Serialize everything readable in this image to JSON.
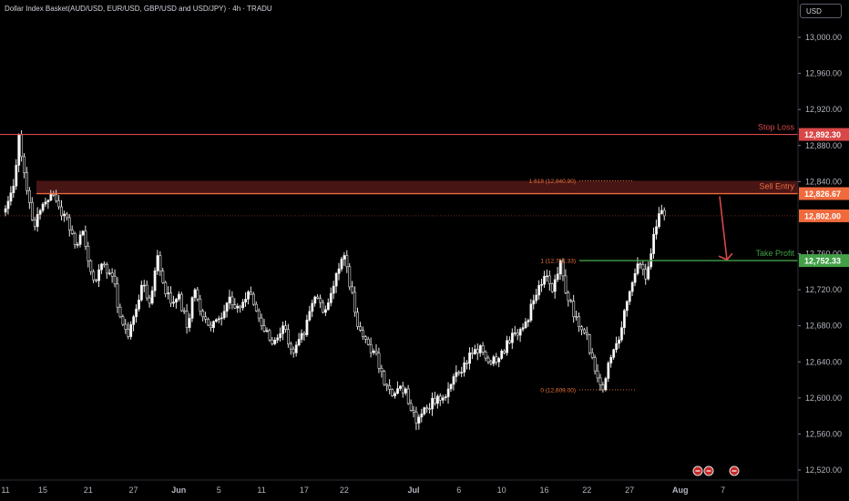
{
  "header": {
    "title": "Dollar Index Basket(AUD/USD, EUR/USD, GBP/USD and USD/JPY) · 4h · TRADU",
    "currency": "USD"
  },
  "colors": {
    "background": "#000000",
    "up": "#f0f0f0",
    "down": "#f0f0f0",
    "upBody": "#ffffff",
    "downBody": "#000000",
    "stop": "#d84848",
    "entry": "#f06a3c",
    "zone": "#5a1a1a",
    "profit": "#43a047",
    "fib": "#f0743c",
    "arrow": "#d84848",
    "last": "#f06a3c"
  },
  "chart_data": {
    "type": "candlestick",
    "ylim": [
      12500,
      13025
    ],
    "y_ticks": [
      "13,000.00",
      "12,960.00",
      "12,920.00",
      "12,880.00",
      "12,840.00",
      "12,760.00",
      "12,720.00",
      "12,680.00",
      "12,640.00",
      "12,600.00",
      "12,560.00",
      "12,520.00"
    ],
    "y_tick_values": [
      13000,
      12960,
      12920,
      12880,
      12840,
      12760,
      12720,
      12680,
      12640,
      12600,
      12560,
      12520
    ],
    "x_ticks": [
      {
        "label": "11",
        "bold": false
      },
      {
        "label": "15",
        "bold": false
      },
      {
        "label": "21",
        "bold": false
      },
      {
        "label": "27",
        "bold": false
      },
      {
        "label": "Jun",
        "bold": true
      },
      {
        "label": "5",
        "bold": false
      },
      {
        "label": "11",
        "bold": false
      },
      {
        "label": "17",
        "bold": false
      },
      {
        "label": "22",
        "bold": false
      },
      {
        "label": "Jul",
        "bold": true
      },
      {
        "label": "6",
        "bold": false
      },
      {
        "label": "10",
        "bold": false
      },
      {
        "label": "16",
        "bold": false
      },
      {
        "label": "22",
        "bold": false
      },
      {
        "label": "27",
        "bold": false
      },
      {
        "label": "Aug",
        "bold": true
      },
      {
        "label": "7",
        "bold": false
      }
    ],
    "x_tick_index": [
      0,
      14,
      31,
      48,
      65,
      80,
      96,
      112,
      127,
      153,
      170,
      186,
      202,
      218,
      234,
      253,
      269
    ],
    "anchors": [
      [
        0,
        12810
      ],
      [
        3,
        12835
      ],
      [
        5,
        12892
      ],
      [
        8,
        12830
      ],
      [
        11,
        12790
      ],
      [
        14,
        12815
      ],
      [
        17,
        12826
      ],
      [
        20,
        12812
      ],
      [
        23,
        12800
      ],
      [
        26,
        12770
      ],
      [
        29,
        12785
      ],
      [
        31,
        12752
      ],
      [
        34,
        12730
      ],
      [
        37,
        12748
      ],
      [
        40,
        12735
      ],
      [
        43,
        12690
      ],
      [
        46,
        12668
      ],
      [
        48,
        12690
      ],
      [
        51,
        12725
      ],
      [
        54,
        12705
      ],
      [
        57,
        12758
      ],
      [
        59,
        12728
      ],
      [
        62,
        12705
      ],
      [
        65,
        12715
      ],
      [
        68,
        12678
      ],
      [
        71,
        12720
      ],
      [
        74,
        12690
      ],
      [
        77,
        12678
      ],
      [
        80,
        12688
      ],
      [
        84,
        12712
      ],
      [
        88,
        12700
      ],
      [
        92,
        12715
      ],
      [
        96,
        12680
      ],
      [
        100,
        12660
      ],
      [
        104,
        12680
      ],
      [
        108,
        12650
      ],
      [
        112,
        12670
      ],
      [
        116,
        12712
      ],
      [
        120,
        12698
      ],
      [
        124,
        12738
      ],
      [
        127,
        12758
      ],
      [
        131,
        12695
      ],
      [
        134,
        12668
      ],
      [
        138,
        12652
      ],
      [
        142,
        12615
      ],
      [
        146,
        12605
      ],
      [
        150,
        12610
      ],
      [
        154,
        12572
      ],
      [
        158,
        12588
      ],
      [
        162,
        12602
      ],
      [
        166,
        12610
      ],
      [
        170,
        12628
      ],
      [
        174,
        12650
      ],
      [
        178,
        12658
      ],
      [
        182,
        12638
      ],
      [
        186,
        12652
      ],
      [
        190,
        12672
      ],
      [
        194,
        12678
      ],
      [
        198,
        12708
      ],
      [
        202,
        12735
      ],
      [
        205,
        12718
      ],
      [
        208,
        12752
      ],
      [
        211,
        12708
      ],
      [
        214,
        12690
      ],
      [
        218,
        12670
      ],
      [
        221,
        12630
      ],
      [
        224,
        12609
      ],
      [
        227,
        12645
      ],
      [
        231,
        12678
      ],
      [
        234,
        12718
      ],
      [
        236,
        12738
      ],
      [
        238,
        12748
      ],
      [
        240,
        12732
      ],
      [
        242,
        12760
      ],
      [
        244,
        12790
      ],
      [
        246,
        12808
      ],
      [
        247,
        12802
      ]
    ],
    "levels": {
      "stop_loss": {
        "label": "Stop Loss",
        "value": 12892.3,
        "tag": "12,892.30"
      },
      "sell_entry": {
        "label": "Sell Entry",
        "value": 12826.67,
        "tag": "12,826.67",
        "zone_top": 12840.9
      },
      "take_profit": {
        "label": "Take Profit",
        "value": 12752.33,
        "tag": "12,752.33"
      },
      "last_price": {
        "value": 12802.0,
        "tag": "12,802.00"
      }
    },
    "fib": {
      "f1618": {
        "label": "1.618 (12,840.90)",
        "value": 12840.9
      },
      "f1": {
        "label": "1 (12,752.33)",
        "value": 12752.33
      },
      "f0": {
        "label": "0 (12,609.00)",
        "value": 12609.0
      }
    }
  }
}
